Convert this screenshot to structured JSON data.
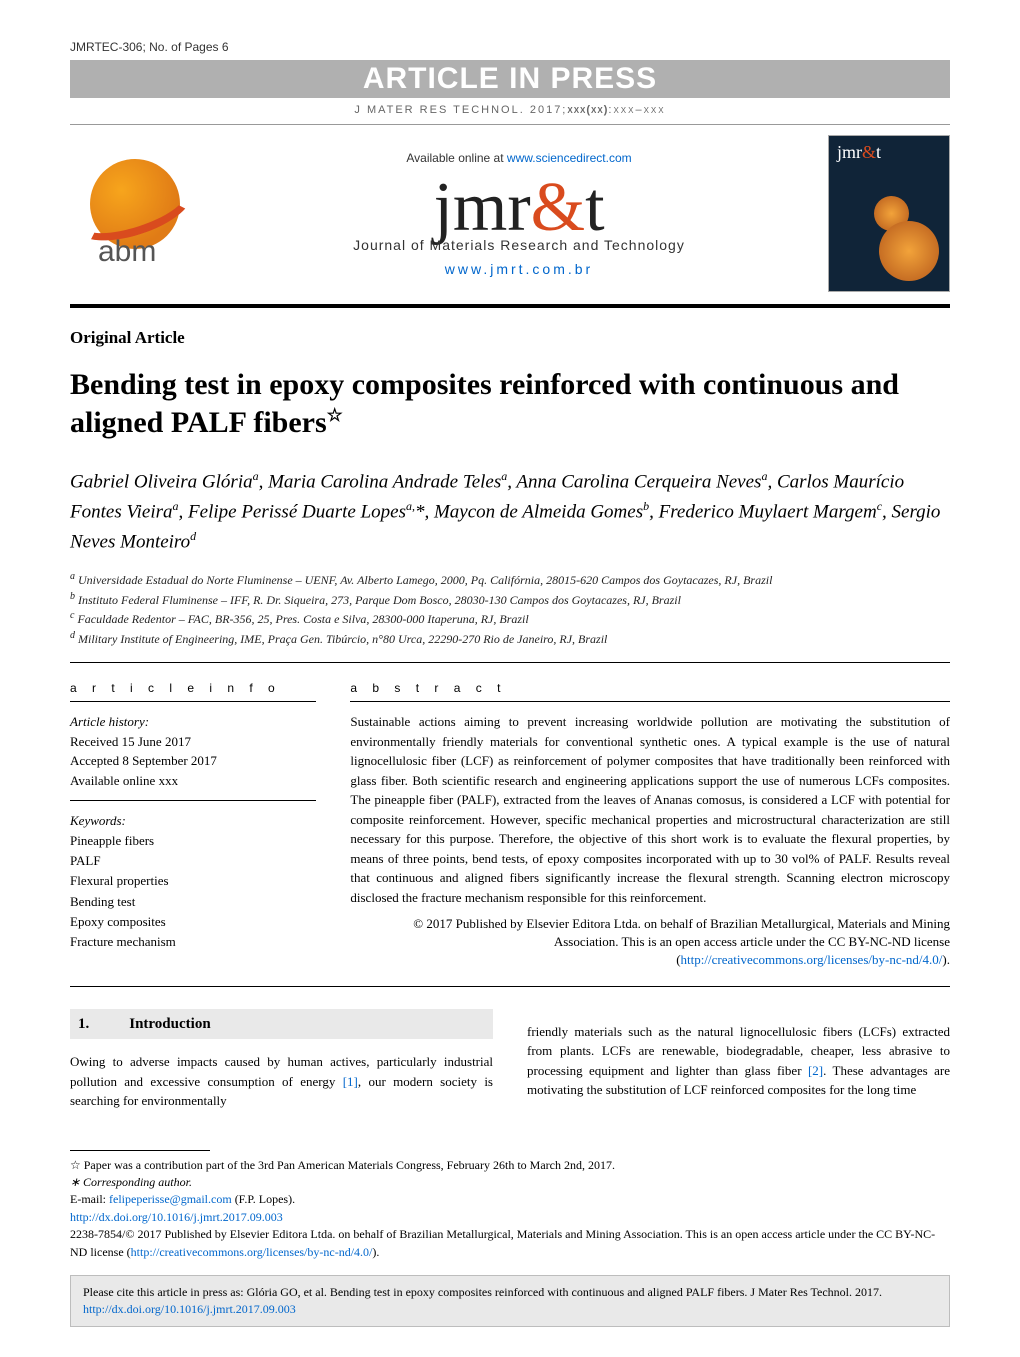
{
  "header": {
    "model_id": "JMRTEC-306;   No. of Pages 6",
    "banner": "ARTICLE IN PRESS",
    "cite_prefix": "J MATER RES TECHNOL. 2017;",
    "cite_bold": "xxx(xx)",
    "cite_suffix": ":xxx–xxx"
  },
  "masthead": {
    "available_prefix": "Available online at ",
    "available_link": "www.sciencedirect.com",
    "logo_main": "jmr",
    "logo_amp": "&",
    "logo_tail": "t",
    "subtitle": "Journal of Materials Research and Technology",
    "url": "www.jmrt.com.br"
  },
  "article": {
    "section_label": "Original Article",
    "title": "Bending test in epoxy composites reinforced with continuous and aligned PALF fibers",
    "title_star": "☆",
    "authors_html": "Gabriel Oliveira Glória<sup>a</sup>, Maria Carolina Andrade Teles<sup>a</sup>, Anna Carolina Cerqueira Neves<sup>a</sup>, Carlos Maurício Fontes Vieira<sup>a</sup>, Felipe Perissé Duarte Lopes<sup>a,</sup>*, Maycon de Almeida Gomes<sup>b</sup>, Frederico Muylaert Margem<sup>c</sup>, Sergio Neves Monteiro<sup>d</sup>",
    "affiliations": [
      "Universidade Estadual do Norte Fluminense – UENF, Av. Alberto Lamego, 2000, Pq. Califórnia, 28015-620 Campos dos Goytacazes, RJ, Brazil",
      "Instituto Federal Fluminense – IFF, R. Dr. Siqueira, 273, Parque Dom Bosco, 28030-130 Campos dos Goytacazes, RJ, Brazil",
      "Faculdade Redentor – FAC, BR-356, 25, Pres. Costa e Silva, 28300-000 Itaperuna, RJ, Brazil",
      "Military Institute of Engineering, IME, Praça Gen. Tibúrcio, n°80 Urca, 22290-270 Rio de Janeiro, RJ, Brazil"
    ],
    "aff_markers": [
      "a",
      "b",
      "c",
      "d"
    ]
  },
  "info": {
    "info_hdr": "a r t i c l e   i n f o",
    "abs_hdr": "a b s t r a c t",
    "history_label": "Article history:",
    "received": "Received 15 June 2017",
    "accepted": "Accepted 8 September 2017",
    "online": "Available online xxx",
    "keywords_label": "Keywords:",
    "keywords": [
      "Pineapple fibers",
      "PALF",
      "Flexural properties",
      "Bending test",
      "Epoxy composites",
      "Fracture mechanism"
    ]
  },
  "abstract": {
    "text": "Sustainable actions aiming to prevent increasing worldwide pollution are motivating the substitution of environmentally friendly materials for conventional synthetic ones. A typical example is the use of natural lignocellulosic fiber (LCF) as reinforcement of polymer composites that have traditionally been reinforced with glass fiber. Both scientific research and engineering applications support the use of numerous LCFs composites. The pineapple fiber (PALF), extracted from the leaves of Ananas comosus, is considered a LCF with potential for composite reinforcement. However, specific mechanical properties and microstructural characterization are still necessary for this purpose. Therefore, the objective of this short work is to evaluate the flexural properties, by means of three points, bend tests, of epoxy composites incorporated with up to 30 vol% of PALF. Results reveal that continuous and aligned fibers significantly increase the flexural strength. Scanning electron microscopy disclosed the fracture mechanism responsible for this reinforcement.",
    "copyright": "© 2017 Published by Elsevier Editora Ltda. on behalf of Brazilian Metallurgical, Materials and Mining Association. This is an open access article under the CC BY-NC-ND license",
    "license_url": "http://creativecommons.org/licenses/by-nc-nd/4.0/"
  },
  "body": {
    "sec_num": "1.",
    "sec_title": "Introduction",
    "col1": "Owing to adverse impacts caused by human actives, particularly industrial pollution and excessive consumption of energy [1], our modern society is searching for environmentally",
    "col2": "friendly materials such as the natural lignocellulosic fibers (LCFs) extracted from plants. LCFs are renewable, biodegradable, cheaper, less abrasive to processing equipment and lighter than glass fiber [2]. These advantages are motivating the substitution of LCF reinforced composites for the long time"
  },
  "footnotes": {
    "star": "☆ Paper was a contribution part of the 3rd Pan American Materials Congress, February 26th to March 2nd, 2017.",
    "corr_label": "∗ Corresponding author.",
    "email_label": "E-mail: ",
    "email": "felipeperisse@gmail.com",
    "email_name": " (F.P. Lopes).",
    "doi": "http://dx.doi.org/10.1016/j.jmrt.2017.09.003",
    "issn_line": "2238-7854/© 2017 Published by Elsevier Editora Ltda. on behalf of Brazilian Metallurgical, Materials and Mining Association. This is an open access article under the CC BY-NC-ND license (",
    "license_url": "http://creativecommons.org/licenses/by-nc-nd/4.0/",
    "issn_tail": ")."
  },
  "citation_box": {
    "text": "Please cite this article in press as: Glória GO, et al. Bending test in epoxy composites reinforced with continuous and aligned PALF fibers. J Mater Res Technol. 2017. ",
    "url": "http://dx.doi.org/10.1016/j.jmrt.2017.09.003"
  }
}
